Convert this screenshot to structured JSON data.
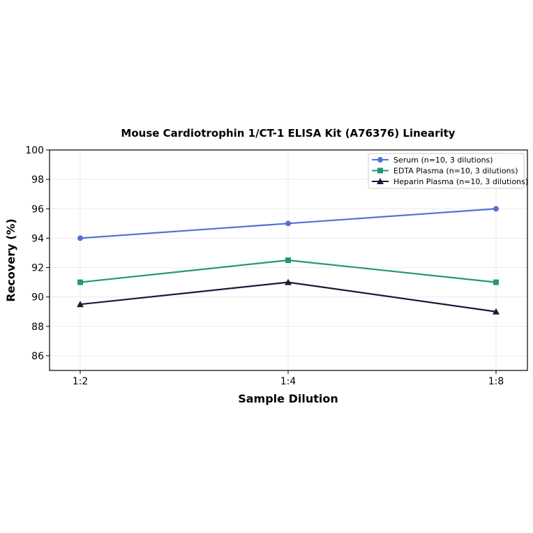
{
  "chart_data": {
    "type": "line",
    "title": "Mouse Cardiotrophin 1/CT-1 ELISA Kit (A76376) Linearity",
    "xlabel": "Sample Dilution",
    "ylabel": "Recovery (%)",
    "categories": [
      "1:2",
      "1:4",
      "1:8"
    ],
    "ylim": [
      85,
      100
    ],
    "yticks": [
      86,
      88,
      90,
      92,
      94,
      96,
      98,
      100
    ],
    "grid": true,
    "legend_position": "top-right",
    "series": [
      {
        "name": "Serum (n=10, 3 dilutions)",
        "values": [
          94,
          95,
          96
        ],
        "color": "#5470d6",
        "marker": "circle"
      },
      {
        "name": "EDTA Plasma (n=10, 3 dilutions)",
        "values": [
          91,
          92.5,
          91
        ],
        "color": "#23977a",
        "marker": "square"
      },
      {
        "name": "Heparin Plasma (n=10, 3 dilutions)",
        "values": [
          89.5,
          91,
          89
        ],
        "color": "#141c3b",
        "marker": "triangle"
      }
    ]
  }
}
